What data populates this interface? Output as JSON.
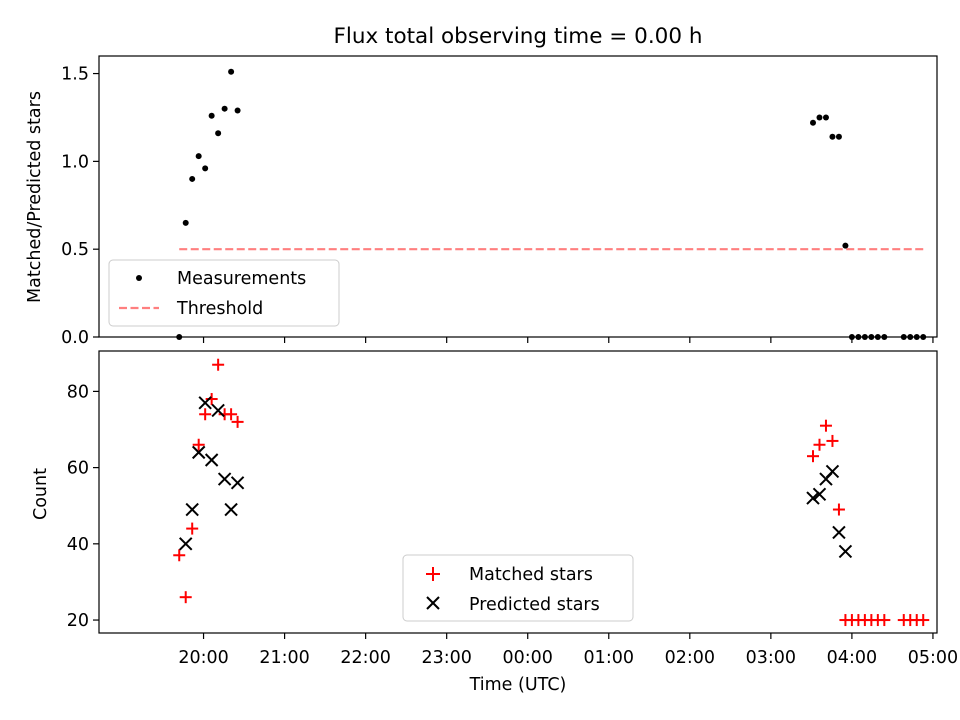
{
  "chart_data": [
    {
      "type": "scatter",
      "title": "Flux total observing time = 0.00 h",
      "ylabel": "Matched/Predicted stars",
      "xlabel": "",
      "x_unit": "hours since 19:00 UTC",
      "xlim": [
        18.71,
        29.05
      ],
      "ylim": [
        0,
        1.6
      ],
      "yticks": [
        0.0,
        0.5,
        1.0,
        1.5
      ],
      "ytick_labels": [
        "0.0",
        "0.5",
        "1.0",
        "1.5"
      ],
      "legend_position": "lower-left",
      "threshold": {
        "name": "Threshold",
        "value": 0.5,
        "x": [
          19.7,
          28.9
        ],
        "color": "#ff7f7f",
        "style": "dashed"
      },
      "series": [
        {
          "name": "Measurements",
          "marker": "dot",
          "color": "#000000",
          "points": [
            [
              19.7,
              0.0
            ],
            [
              19.78,
              0.65
            ],
            [
              19.86,
              0.9
            ],
            [
              19.94,
              1.03
            ],
            [
              20.02,
              0.96
            ],
            [
              20.1,
              1.26
            ],
            [
              20.18,
              1.16
            ],
            [
              20.26,
              1.3
            ],
            [
              20.34,
              1.51
            ],
            [
              20.42,
              1.29
            ],
            [
              27.52,
              1.22
            ],
            [
              27.6,
              1.25
            ],
            [
              27.68,
              1.25
            ],
            [
              27.76,
              1.14
            ],
            [
              27.84,
              1.14
            ],
            [
              27.92,
              0.52
            ],
            [
              28.0,
              0.0
            ],
            [
              28.08,
              0.0
            ],
            [
              28.16,
              0.0
            ],
            [
              28.24,
              0.0
            ],
            [
              28.32,
              0.0
            ],
            [
              28.4,
              0.0
            ],
            [
              28.64,
              0.0
            ],
            [
              28.72,
              0.0
            ],
            [
              28.8,
              0.0
            ],
            [
              28.88,
              0.0
            ]
          ]
        }
      ]
    },
    {
      "type": "scatter",
      "title": "",
      "ylabel": "Count",
      "xlabel": "Time (UTC)",
      "xlim": [
        18.71,
        29.05
      ],
      "ylim": [
        16.6,
        90.6
      ],
      "yticks": [
        20,
        40,
        60,
        80
      ],
      "ytick_labels": [
        "20",
        "40",
        "60",
        "80"
      ],
      "xticks": [
        20,
        21,
        22,
        23,
        24,
        25,
        26,
        27,
        28,
        29
      ],
      "xtick_labels": [
        "20:00",
        "21:00",
        "22:00",
        "23:00",
        "00:00",
        "01:00",
        "02:00",
        "03:00",
        "04:00",
        "05:00"
      ],
      "legend_position": "lower-center",
      "series": [
        {
          "name": "Matched stars",
          "marker": "plus",
          "color": "#ff0000",
          "points": [
            [
              19.7,
              37
            ],
            [
              19.78,
              26
            ],
            [
              19.86,
              44
            ],
            [
              19.94,
              66
            ],
            [
              20.02,
              74
            ],
            [
              20.1,
              78
            ],
            [
              20.18,
              87
            ],
            [
              20.26,
              74
            ],
            [
              20.34,
              74
            ],
            [
              20.42,
              72
            ],
            [
              27.52,
              63
            ],
            [
              27.6,
              66
            ],
            [
              27.68,
              71
            ],
            [
              27.76,
              67
            ],
            [
              27.84,
              49
            ],
            [
              27.92,
              20
            ],
            [
              28.0,
              20
            ],
            [
              28.08,
              20
            ],
            [
              28.16,
              20
            ],
            [
              28.24,
              20
            ],
            [
              28.32,
              20
            ],
            [
              28.4,
              20
            ],
            [
              28.64,
              20
            ],
            [
              28.72,
              20
            ],
            [
              28.8,
              20
            ],
            [
              28.88,
              20
            ]
          ]
        },
        {
          "name": "Predicted stars",
          "marker": "x",
          "color": "#000000",
          "points": [
            [
              19.78,
              40
            ],
            [
              19.86,
              49
            ],
            [
              19.94,
              64
            ],
            [
              20.02,
              77
            ],
            [
              20.1,
              62
            ],
            [
              20.18,
              75
            ],
            [
              20.26,
              57
            ],
            [
              20.34,
              49
            ],
            [
              20.42,
              56
            ],
            [
              27.52,
              52
            ],
            [
              27.6,
              53
            ],
            [
              27.68,
              57
            ],
            [
              27.76,
              59
            ],
            [
              27.84,
              43
            ],
            [
              27.92,
              38
            ]
          ]
        }
      ]
    }
  ]
}
